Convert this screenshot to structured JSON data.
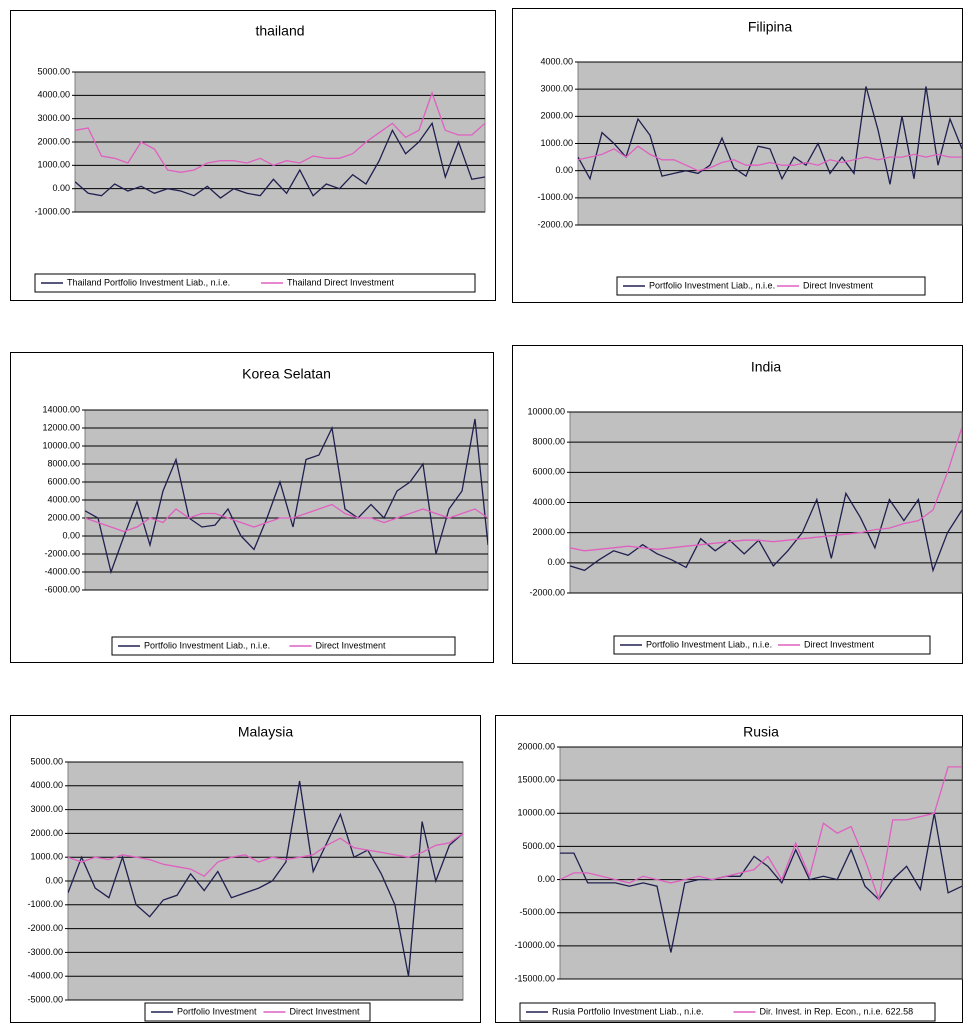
{
  "chart_data": [
    {
      "type": "line",
      "title": "thailand",
      "ylim": [
        -1000,
        5000
      ],
      "yticks": [
        {
          "value": -1000,
          "label": "-1000.00"
        },
        {
          "value": 0,
          "label": "0.00"
        },
        {
          "value": 1000,
          "label": "1000.00"
        },
        {
          "value": 2000,
          "label": "2000.00"
        },
        {
          "value": 3000,
          "label": "3000.00"
        },
        {
          "value": 4000,
          "label": "4000.00"
        },
        {
          "value": 5000,
          "label": "5000.00"
        }
      ],
      "grid": true,
      "series": [
        {
          "name": "Thailand  Portfolio Investment Liab., n.i.e.",
          "color": "#202050",
          "values": [
            300,
            -200,
            -300,
            200,
            -100,
            100,
            -200,
            0,
            -100,
            -300,
            100,
            -400,
            0,
            -200,
            -300,
            400,
            -200,
            800,
            -300,
            200,
            0,
            600,
            200,
            1200,
            2500,
            1500,
            2000,
            2800,
            500,
            2000,
            400,
            500
          ]
        },
        {
          "name": "Thailand Direct Investment",
          "color": "#e060c0",
          "values": [
            2500,
            2600,
            1400,
            1300,
            1100,
            2000,
            1700,
            800,
            700,
            800,
            1100,
            1200,
            1200,
            1100,
            1300,
            1000,
            1200,
            1100,
            1400,
            1300,
            1300,
            1500,
            2000,
            2400,
            2800,
            2200,
            2500,
            4100,
            2500,
            2300,
            2300,
            2800
          ]
        }
      ]
    },
    {
      "type": "line",
      "title": "Filipina",
      "ylim": [
        -2000,
        4000
      ],
      "yticks": [
        {
          "value": -2000,
          "label": "-2000.00"
        },
        {
          "value": -1000,
          "label": "-1000.00"
        },
        {
          "value": 0,
          "label": "0.00"
        },
        {
          "value": 1000,
          "label": "1000.00"
        },
        {
          "value": 2000,
          "label": "2000.00"
        },
        {
          "value": 3000,
          "label": "3000.00"
        },
        {
          "value": 4000,
          "label": "4000.00"
        }
      ],
      "grid": true,
      "series": [
        {
          "name": "Portfolio Investment Liab., n.i.e.",
          "color": "#202050",
          "values": [
            500,
            -300,
            1400,
            1000,
            500,
            1900,
            1300,
            -200,
            -100,
            0,
            -100,
            200,
            1200,
            100,
            -200,
            900,
            800,
            -300,
            500,
            200,
            1000,
            -100,
            500,
            -100,
            3100,
            1500,
            -500,
            2000,
            -300,
            3100,
            200,
            1900,
            800
          ]
        },
        {
          "name": "Direct Investment",
          "color": "#e060c0",
          "values": [
            400,
            500,
            600,
            800,
            500,
            900,
            600,
            400,
            400,
            200,
            0,
            100,
            300,
            400,
            200,
            200,
            300,
            200,
            200,
            300,
            200,
            400,
            300,
            400,
            500,
            400,
            500,
            500,
            600,
            500,
            600,
            500,
            500
          ]
        }
      ]
    },
    {
      "type": "line",
      "title": "Korea Selatan",
      "ylim": [
        -6000,
        14000
      ],
      "yticks": [
        {
          "value": -6000,
          "label": "-6000.00"
        },
        {
          "value": -4000,
          "label": "-4000.00"
        },
        {
          "value": -2000,
          "label": "-2000.00"
        },
        {
          "value": 0,
          "label": "0.00"
        },
        {
          "value": 2000,
          "label": "2000.00"
        },
        {
          "value": 4000,
          "label": "4000.00"
        },
        {
          "value": 6000,
          "label": "6000.00"
        },
        {
          "value": 8000,
          "label": "8000.00"
        },
        {
          "value": 10000,
          "label": "10000.00"
        },
        {
          "value": 12000,
          "label": "12000.00"
        },
        {
          "value": 14000,
          "label": "14000.00"
        }
      ],
      "grid": true,
      "series": [
        {
          "name": "Portfolio Investment Liab., n.i.e.",
          "color": "#202050",
          "values": [
            2800,
            2000,
            -4000,
            0,
            3800,
            -1000,
            5000,
            8500,
            2000,
            1000,
            1200,
            3000,
            0,
            -1500,
            2000,
            6000,
            1000,
            8500,
            9000,
            12000,
            3000,
            2000,
            3500,
            2000,
            5000,
            6000,
            8000,
            -2000,
            3000,
            5000,
            13000,
            -1000
          ]
        },
        {
          "name": "Direct Investment",
          "color": "#e060c0",
          "values": [
            2000,
            1500,
            1000,
            500,
            1000,
            2000,
            1500,
            3000,
            2000,
            2500,
            2500,
            2000,
            1500,
            1000,
            1500,
            2000,
            2000,
            2500,
            3000,
            3500,
            2500,
            2000,
            2000,
            1500,
            2000,
            2500,
            3000,
            2500,
            2000,
            2500,
            3000,
            2000
          ]
        }
      ]
    },
    {
      "type": "line",
      "title": "India",
      "ylim": [
        -2000,
        10000
      ],
      "yticks": [
        {
          "value": -2000,
          "label": "-2000.00"
        },
        {
          "value": 0,
          "label": "0.00"
        },
        {
          "value": 2000,
          "label": "2000.00"
        },
        {
          "value": 4000,
          "label": "4000.00"
        },
        {
          "value": 6000,
          "label": "6000.00"
        },
        {
          "value": 8000,
          "label": "8000.00"
        },
        {
          "value": 10000,
          "label": "10000.00"
        }
      ],
      "grid": true,
      "series": [
        {
          "name": "Portfolio Investment Liab., n.i.e.",
          "color": "#202050",
          "values": [
            -200,
            -500,
            200,
            800,
            500,
            1200,
            600,
            200,
            -300,
            1600,
            800,
            1500,
            600,
            1500,
            -200,
            800,
            2000,
            4200,
            300,
            4600,
            3000,
            1000,
            4200,
            2800,
            4200,
            -500,
            2000,
            3500
          ]
        },
        {
          "name": "Direct Investment",
          "color": "#e060c0",
          "values": [
            1000,
            800,
            900,
            1000,
            1100,
            1000,
            900,
            1000,
            1100,
            1200,
            1300,
            1400,
            1500,
            1500,
            1400,
            1500,
            1600,
            1700,
            1800,
            1900,
            2000,
            2200,
            2300,
            2600,
            2800,
            3500,
            6000,
            9000
          ]
        }
      ]
    },
    {
      "type": "line",
      "title": "Malaysia",
      "ylim": [
        -5000,
        5000
      ],
      "yticks": [
        {
          "value": -5000,
          "label": "-5000.00"
        },
        {
          "value": -4000,
          "label": "-4000.00"
        },
        {
          "value": -3000,
          "label": "-3000.00"
        },
        {
          "value": -2000,
          "label": "-2000.00"
        },
        {
          "value": -1000,
          "label": "-1000.00"
        },
        {
          "value": 0,
          "label": "0.00"
        },
        {
          "value": 1000,
          "label": "1000.00"
        },
        {
          "value": 2000,
          "label": "2000.00"
        },
        {
          "value": 3000,
          "label": "3000.00"
        },
        {
          "value": 4000,
          "label": "4000.00"
        },
        {
          "value": 5000,
          "label": "5000.00"
        }
      ],
      "grid": true,
      "series": [
        {
          "name": "Portfolio Investment",
          "color": "#202050",
          "values": [
            -500,
            1000,
            -300,
            -700,
            1000,
            -1000,
            -1500,
            -800,
            -600,
            300,
            -400,
            400,
            -700,
            -500,
            -300,
            0,
            800,
            4200,
            400,
            1600,
            2800,
            1000,
            1300,
            300,
            -1000,
            -4000,
            2500,
            0,
            1500,
            2000
          ]
        },
        {
          "name": "Direct Investment",
          "color": "#e060c0",
          "values": [
            1000,
            800,
            1000,
            900,
            1100,
            1000,
            900,
            700,
            600,
            500,
            200,
            800,
            1000,
            1100,
            800,
            1000,
            900,
            1000,
            1100,
            1500,
            1800,
            1400,
            1300,
            1200,
            1100,
            1000,
            1200,
            1500,
            1600,
            2000
          ]
        }
      ]
    },
    {
      "type": "line",
      "title": "Rusia",
      "ylim": [
        -15000,
        20000
      ],
      "yticks": [
        {
          "value": -15000,
          "label": "-15000.00"
        },
        {
          "value": -10000,
          "label": "-10000.00"
        },
        {
          "value": -5000,
          "label": "-5000.00"
        },
        {
          "value": 0,
          "label": "0.00"
        },
        {
          "value": 5000,
          "label": "5000.00"
        },
        {
          "value": 10000,
          "label": "10000.00"
        },
        {
          "value": 15000,
          "label": "15000.00"
        },
        {
          "value": 20000,
          "label": "20000.00"
        }
      ],
      "grid": true,
      "series": [
        {
          "name": "Rusia  Portfolio Investment Liab., n.i.e.",
          "color": "#202050",
          "values": [
            4000,
            4000,
            -500,
            -500,
            -500,
            -1000,
            -500,
            -1000,
            -11000,
            -500,
            0,
            0,
            500,
            500,
            3500,
            2000,
            -500,
            4500,
            0,
            500,
            0,
            4500,
            -1000,
            -3000,
            0,
            2000,
            -1500,
            10000,
            -2000,
            -1000
          ]
        },
        {
          "name": "Dir. Invest. in Rep. Econ., n.i.e. 622.58",
          "color": "#e060c0",
          "values": [
            0,
            1000,
            1000,
            500,
            0,
            -500,
            500,
            0,
            -500,
            0,
            500,
            0,
            500,
            1000,
            1500,
            3500,
            0,
            5500,
            500,
            8500,
            7000,
            8000,
            3000,
            -3000,
            9000,
            9000,
            9500,
            10000,
            17000,
            17000
          ]
        }
      ]
    }
  ]
}
